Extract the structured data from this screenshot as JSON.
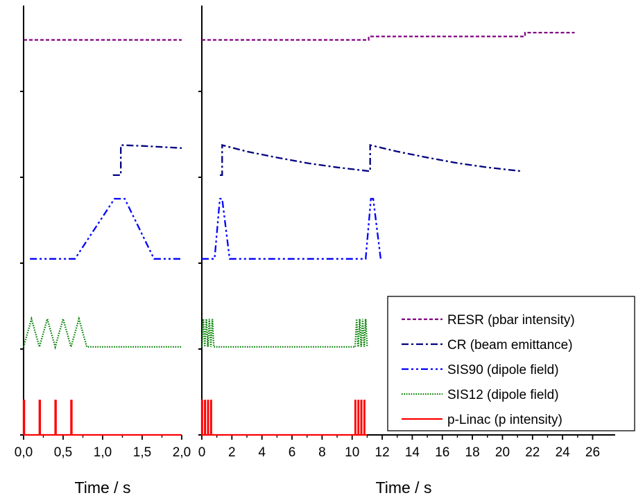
{
  "chart_data": [
    {
      "type": "line",
      "xlabel": "Time / s",
      "ylabel": "",
      "xlim": [
        0,
        2
      ],
      "xticks": [
        0,
        0.5,
        1,
        1.5,
        2
      ],
      "xtick_labels": [
        "0,0",
        "0,5",
        "1,0",
        "1,5",
        "2,0"
      ],
      "y_scale": "normalized",
      "ylim": [
        0,
        100
      ],
      "yticks": [
        0,
        20,
        40,
        60,
        80
      ],
      "series": [
        {
          "name": "RESR (pbar intensity)",
          "color": "#800080",
          "dash": "dashed",
          "points": [
            [
              0,
              92
            ],
            [
              2,
              92
            ]
          ]
        },
        {
          "name": "CR (beam emittance)",
          "color": "#000080",
          "dash": "dashdot",
          "points": [
            [
              1.13,
              60.5
            ],
            [
              1.23,
              60.5
            ],
            [
              1.23,
              67.5
            ],
            [
              1.5,
              67.3
            ],
            [
              2.0,
              66.8
            ]
          ]
        },
        {
          "name": "SIS90 (dipole field)",
          "color": "#0000FF",
          "dash": "dashdotdot",
          "points": [
            [
              0.08,
              41
            ],
            [
              0.65,
              41
            ],
            [
              1.15,
              55
            ],
            [
              1.28,
              55
            ],
            [
              1.65,
              41
            ],
            [
              2.0,
              41
            ]
          ]
        },
        {
          "name": "SIS12 (dipole field)",
          "color": "#008000",
          "dash": "dotted",
          "points": [
            [
              0,
              20.5
            ],
            [
              0.1,
              27
            ],
            [
              0.2,
              20.5
            ],
            [
              0.3,
              27
            ],
            [
              0.4,
              20.5
            ],
            [
              0.5,
              27
            ],
            [
              0.6,
              20.5
            ],
            [
              0.7,
              27
            ],
            [
              0.8,
              20.5
            ],
            [
              2.0,
              20.5
            ]
          ]
        },
        {
          "name": "p-Linac (p intensity)",
          "color": "#FF0000",
          "dash": "solid",
          "points": [
            [
              0,
              0
            ],
            [
              0,
              8
            ],
            [
              0.01,
              8
            ],
            [
              0.01,
              0
            ],
            [
              0.2,
              0
            ],
            [
              0.2,
              8
            ],
            [
              0.21,
              8
            ],
            [
              0.21,
              0
            ],
            [
              0.4,
              0
            ],
            [
              0.4,
              8
            ],
            [
              0.41,
              8
            ],
            [
              0.41,
              0
            ],
            [
              0.6,
              0
            ],
            [
              0.6,
              8
            ],
            [
              0.61,
              8
            ],
            [
              0.61,
              0
            ],
            [
              2.0,
              0
            ]
          ]
        }
      ]
    },
    {
      "type": "line",
      "xlabel": "Time / s",
      "ylabel": "",
      "xlim": [
        0,
        27.5
      ],
      "xticks": [
        0,
        2,
        4,
        6,
        8,
        10,
        12,
        14,
        16,
        18,
        20,
        22,
        24,
        26
      ],
      "xtick_labels": [
        "0",
        "2",
        "4",
        "6",
        "8",
        "10",
        "12",
        "14",
        "16",
        "18",
        "20",
        "22",
        "24",
        "26"
      ],
      "y_scale": "normalized",
      "ylim": [
        0,
        100
      ],
      "legend": {
        "position": "bottom-right",
        "entries": [
          "RESR (pbar intensity)",
          "CR (beam emittance)",
          "SIS90 (dipole field)",
          "SIS12 (dipole field)",
          "p-Linac (p intensity)"
        ]
      },
      "series": [
        {
          "name": "RESR (pbar intensity)",
          "color": "#800080",
          "dash": "dashed",
          "points": [
            [
              0,
              92
            ],
            [
              11.1,
              92
            ],
            [
              11.1,
              92.8
            ],
            [
              21.5,
              92.8
            ],
            [
              21.5,
              93.7
            ],
            [
              24.8,
              93.7
            ]
          ]
        },
        {
          "name": "CR (beam emittance)",
          "color": "#000080",
          "dash": "dashdot",
          "points": [
            [
              1.2,
              60.5
            ],
            [
              1.35,
              60.5
            ],
            [
              1.35,
              67.5
            ],
            [
              3,
              66
            ],
            [
              5,
              64.6
            ],
            [
              7,
              63.3
            ],
            [
              9,
              62.3
            ],
            [
              11.2,
              61.4
            ],
            [
              11.2,
              67.5
            ],
            [
              13,
              66
            ],
            [
              15,
              64.6
            ],
            [
              17,
              63.3
            ],
            [
              19,
              62.3
            ],
            [
              21.3,
              61.4
            ]
          ]
        },
        {
          "name": "SIS90 (dipole field)",
          "color": "#0000FF",
          "dash": "dashdotdot",
          "points": [
            [
              0,
              41
            ],
            [
              0.85,
              41
            ],
            [
              1.2,
              55
            ],
            [
              1.35,
              55
            ],
            [
              1.85,
              41
            ],
            [
              10.9,
              41
            ],
            [
              11.25,
              55
            ],
            [
              11.4,
              55
            ],
            [
              11.9,
              41
            ]
          ]
        },
        {
          "name": "SIS12 (dipole field)",
          "color": "#008000",
          "dash": "dotted",
          "points": [
            [
              0,
              20.5
            ],
            [
              0.1,
              27
            ],
            [
              0.2,
              20.5
            ],
            [
              0.3,
              27
            ],
            [
              0.4,
              20.5
            ],
            [
              0.5,
              27
            ],
            [
              0.6,
              20.5
            ],
            [
              0.7,
              27
            ],
            [
              0.8,
              20.5
            ],
            [
              10.2,
              20.5
            ],
            [
              10.3,
              27
            ],
            [
              10.4,
              20.5
            ],
            [
              10.5,
              27
            ],
            [
              10.6,
              20.5
            ],
            [
              10.7,
              27
            ],
            [
              10.8,
              20.5
            ],
            [
              10.9,
              27
            ],
            [
              11.0,
              20.5
            ]
          ]
        },
        {
          "name": "p-Linac (p intensity)",
          "color": "#FF0000",
          "dash": "solid",
          "points": [
            [
              0,
              0
            ],
            [
              0,
              8
            ],
            [
              0.03,
              8
            ],
            [
              0.03,
              0
            ],
            [
              0.2,
              0
            ],
            [
              0.2,
              8
            ],
            [
              0.23,
              8
            ],
            [
              0.23,
              0
            ],
            [
              0.4,
              0
            ],
            [
              0.4,
              8
            ],
            [
              0.43,
              8
            ],
            [
              0.43,
              0
            ],
            [
              0.6,
              0
            ],
            [
              0.6,
              8
            ],
            [
              0.63,
              8
            ],
            [
              0.63,
              0
            ],
            [
              10.2,
              0
            ],
            [
              10.2,
              8
            ],
            [
              10.23,
              8
            ],
            [
              10.23,
              0
            ],
            [
              10.4,
              0
            ],
            [
              10.4,
              8
            ],
            [
              10.43,
              8
            ],
            [
              10.43,
              0
            ],
            [
              10.6,
              0
            ],
            [
              10.6,
              8
            ],
            [
              10.63,
              8
            ],
            [
              10.63,
              0
            ],
            [
              10.8,
              0
            ],
            [
              10.8,
              8
            ],
            [
              10.83,
              8
            ],
            [
              10.83,
              0
            ],
            [
              11.0,
              0
            ]
          ]
        }
      ]
    }
  ]
}
